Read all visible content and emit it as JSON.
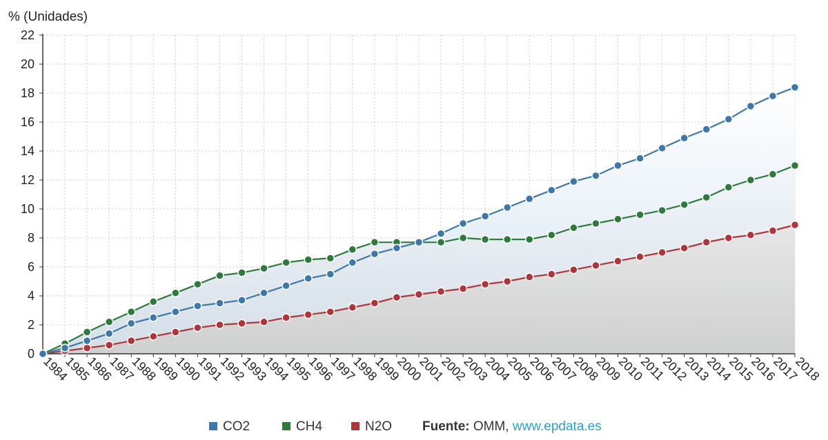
{
  "chart_data": {
    "type": "area",
    "ylabel": "% (Unidades)",
    "xlabel": "",
    "title": "",
    "ylim": [
      0,
      22
    ],
    "yticks": [
      0,
      2,
      4,
      6,
      8,
      10,
      12,
      14,
      16,
      18,
      20,
      22
    ],
    "grid": true,
    "legend_position": "bottom-center",
    "categories": [
      "1984",
      "1985",
      "1986",
      "1987",
      "1988",
      "1989",
      "1990",
      "1991",
      "1992",
      "1993",
      "1994",
      "1995",
      "1996",
      "1997",
      "1998",
      "1999",
      "2000",
      "2001",
      "2002",
      "2003",
      "2004",
      "2005",
      "2006",
      "2007",
      "2008",
      "2009",
      "2010",
      "2011",
      "2012",
      "2013",
      "2014",
      "2015",
      "2016",
      "2017",
      "2018"
    ],
    "series": [
      {
        "name": "CO2",
        "color": "#3c78aa",
        "values": [
          0,
          0.4,
          0.9,
          1.4,
          2.1,
          2.5,
          2.9,
          3.3,
          3.5,
          3.7,
          4.2,
          4.7,
          5.2,
          5.5,
          6.3,
          6.9,
          7.3,
          7.7,
          8.3,
          9.0,
          9.5,
          10.1,
          10.7,
          11.3,
          11.9,
          12.3,
          13.0,
          13.5,
          14.2,
          14.9,
          15.5,
          16.2,
          17.1,
          17.8,
          18.4
        ]
      },
      {
        "name": "CH4",
        "color": "#2e7a3c",
        "values": [
          0,
          0.7,
          1.5,
          2.2,
          2.9,
          3.6,
          4.2,
          4.8,
          5.4,
          5.6,
          5.9,
          6.3,
          6.5,
          6.6,
          7.2,
          7.7,
          7.7,
          7.7,
          7.7,
          8.0,
          7.9,
          7.9,
          7.9,
          8.2,
          8.7,
          9.0,
          9.3,
          9.6,
          9.9,
          10.3,
          10.8,
          11.5,
          12.0,
          12.4,
          13.0
        ]
      },
      {
        "name": "N2O",
        "color": "#b0343a",
        "values": [
          0,
          0.2,
          0.4,
          0.6,
          0.9,
          1.2,
          1.5,
          1.8,
          2.0,
          2.1,
          2.2,
          2.5,
          2.7,
          2.9,
          3.2,
          3.5,
          3.9,
          4.1,
          4.3,
          4.5,
          4.8,
          5.0,
          5.3,
          5.5,
          5.8,
          6.1,
          6.4,
          6.7,
          7.0,
          7.3,
          7.7,
          8.0,
          8.2,
          8.5,
          8.9
        ]
      }
    ]
  },
  "source": {
    "label": "Fuente:",
    "text": " OMM, ",
    "link": "www.epdata.es"
  }
}
